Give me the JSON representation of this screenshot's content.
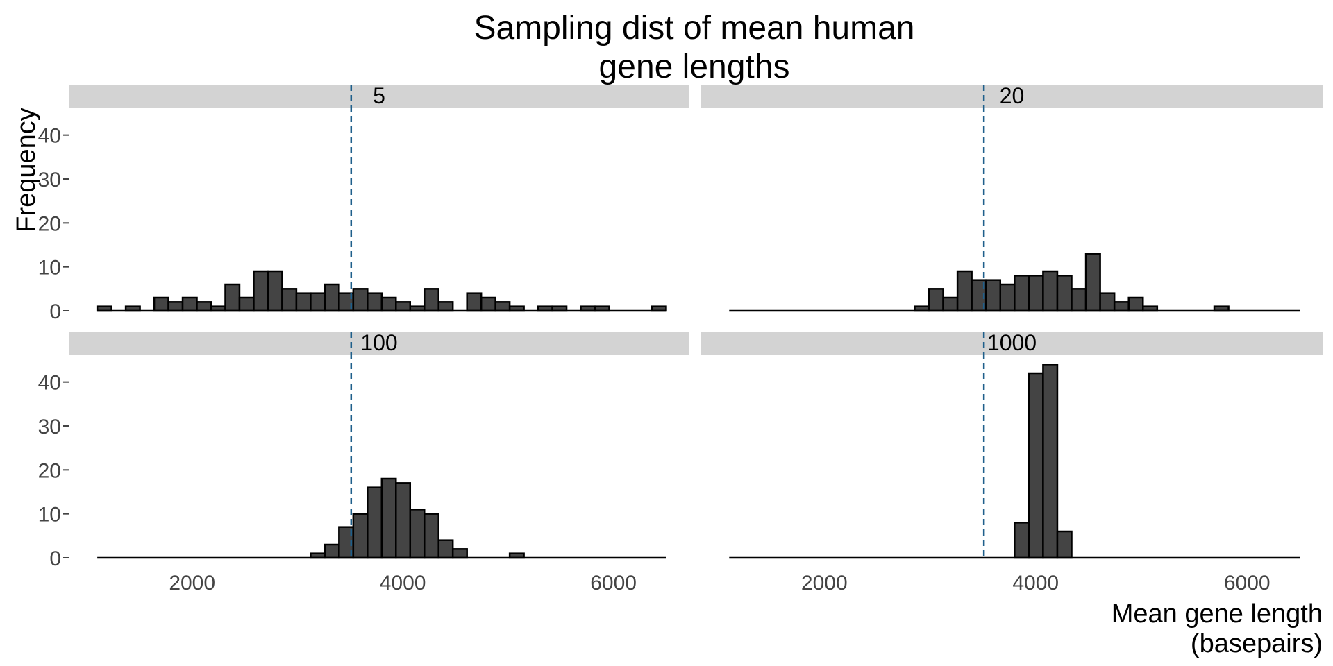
{
  "chart_data": {
    "type": "bar",
    "title": [
      "Sampling dist of mean human",
      "gene lengths"
    ],
    "xlabel": [
      "Mean gene length",
      "(basepairs)"
    ],
    "ylabel": "Frequency",
    "xlim": [
      1100,
      6450
    ],
    "ylim": [
      0,
      45
    ],
    "xticks": [
      2000,
      4000,
      6000
    ],
    "yticks": [
      0,
      10,
      20,
      30,
      40
    ],
    "bin_start": 1100,
    "bin_width": 135,
    "reference_line_x": 3510,
    "colors": {
      "bar_fill": "#444444",
      "bar_stroke": "#000000",
      "strip_bg": "#d3d3d3",
      "reference_line": "#1f5f8b",
      "tick_text": "#444444"
    },
    "panels": [
      {
        "label": "5",
        "counts": [
          1,
          0,
          1,
          0,
          3,
          2,
          3,
          2,
          1,
          6,
          3,
          9,
          9,
          5,
          4,
          4,
          6,
          4,
          5,
          4,
          3,
          2,
          1,
          5,
          2,
          0,
          4,
          3,
          2,
          1,
          0,
          1,
          1,
          0,
          1,
          1,
          0,
          0,
          0,
          1
        ]
      },
      {
        "label": "20",
        "counts": [
          0,
          0,
          0,
          0,
          0,
          0,
          0,
          0,
          0,
          0,
          0,
          0,
          0,
          1,
          5,
          3,
          9,
          7,
          7,
          6,
          8,
          8,
          9,
          8,
          5,
          13,
          4,
          2,
          3,
          1,
          0,
          0,
          0,
          0,
          1,
          0,
          0,
          0,
          0,
          0
        ]
      },
      {
        "label": "100",
        "counts": [
          0,
          0,
          0,
          0,
          0,
          0,
          0,
          0,
          0,
          0,
          0,
          0,
          0,
          0,
          0,
          1,
          3,
          7,
          10,
          16,
          18,
          17,
          11,
          10,
          4,
          2,
          0,
          0,
          0,
          1,
          0,
          0,
          0,
          0,
          0,
          0,
          0,
          0,
          0,
          0
        ]
      },
      {
        "label": "1000",
        "counts": [
          0,
          0,
          0,
          0,
          0,
          0,
          0,
          0,
          0,
          0,
          0,
          0,
          0,
          0,
          0,
          0,
          0,
          0,
          0,
          0,
          8,
          42,
          44,
          6,
          0,
          0,
          0,
          0,
          0,
          0,
          0,
          0,
          0,
          0,
          0,
          0,
          0,
          0,
          0,
          0
        ]
      }
    ]
  }
}
